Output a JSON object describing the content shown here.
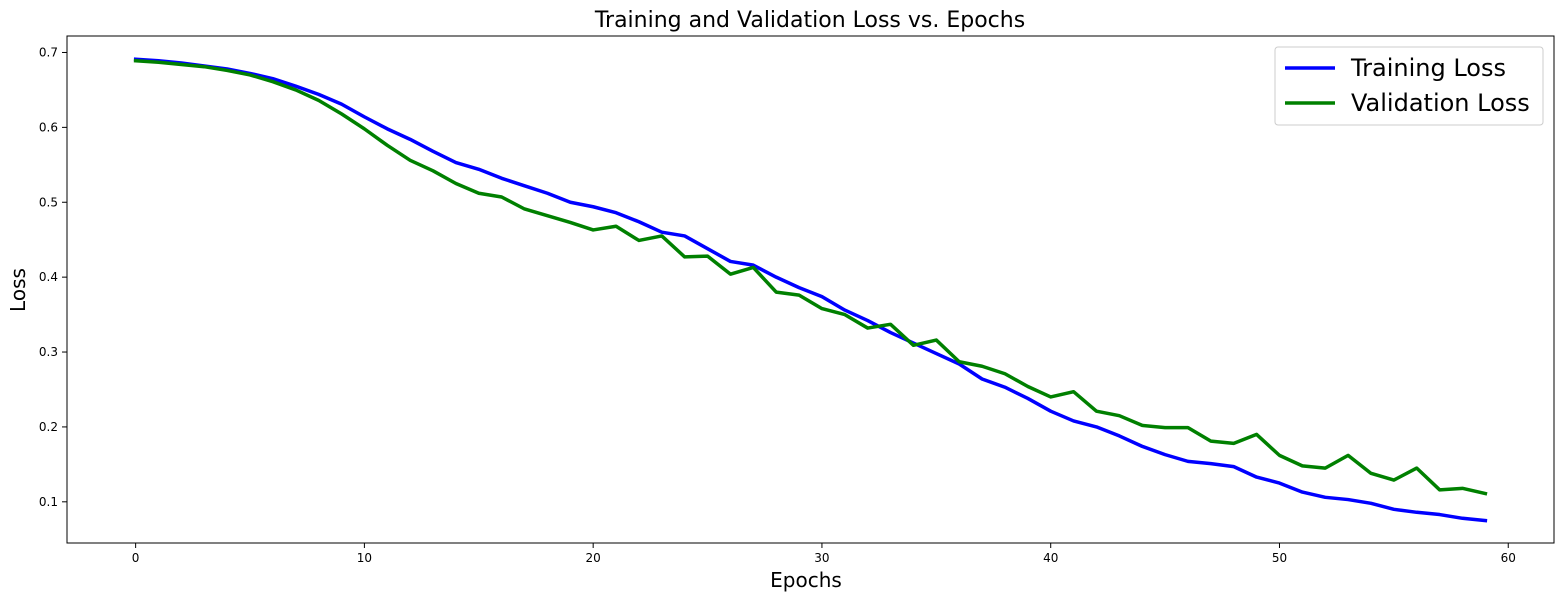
{
  "chart_data": {
    "type": "line",
    "title": "Training and Validation Loss vs. Epochs",
    "xlabel": "Epochs",
    "ylabel": "Loss",
    "xlim": [
      -3,
      62
    ],
    "ylim": [
      0.045,
      0.722
    ],
    "xticks": [
      0,
      10,
      20,
      30,
      40,
      50,
      60
    ],
    "yticks": [
      0.1,
      0.2,
      0.3,
      0.4,
      0.5,
      0.6,
      0.7
    ],
    "xtick_labels": [
      "0",
      "10",
      "20",
      "30",
      "40",
      "50",
      "60"
    ],
    "ytick_labels": [
      "0.1",
      "0.2",
      "0.3",
      "0.4",
      "0.5",
      "0.6",
      "0.7"
    ],
    "grid": false,
    "legend_position": "top-right",
    "x": [
      0,
      1,
      2,
      3,
      4,
      5,
      6,
      7,
      8,
      9,
      10,
      11,
      12,
      13,
      14,
      15,
      16,
      17,
      18,
      19,
      20,
      21,
      22,
      23,
      24,
      25,
      26,
      27,
      28,
      29,
      30,
      31,
      32,
      33,
      34,
      35,
      36,
      37,
      38,
      39,
      40,
      41,
      42,
      43,
      44,
      45,
      46,
      47,
      48,
      49,
      50,
      51,
      52,
      53,
      54,
      55,
      56,
      57,
      58,
      59
    ],
    "series": [
      {
        "name": "Training Loss",
        "color": "#0000ff",
        "values": [
          0.691,
          0.689,
          0.686,
          0.682,
          0.678,
          0.672,
          0.665,
          0.655,
          0.644,
          0.631,
          0.614,
          0.598,
          0.584,
          0.568,
          0.553,
          0.544,
          0.532,
          0.522,
          0.512,
          0.5,
          0.494,
          0.486,
          0.474,
          0.46,
          0.455,
          0.438,
          0.421,
          0.416,
          0.4,
          0.386,
          0.374,
          0.356,
          0.342,
          0.326,
          0.312,
          0.298,
          0.284,
          0.264,
          0.253,
          0.238,
          0.221,
          0.208,
          0.2,
          0.188,
          0.174,
          0.163,
          0.154,
          0.151,
          0.147,
          0.133,
          0.125,
          0.113,
          0.106,
          0.103,
          0.098,
          0.09,
          0.086,
          0.083,
          0.078,
          0.075
        ]
      },
      {
        "name": "Validation Loss",
        "color": "#008000",
        "values": [
          0.689,
          0.687,
          0.684,
          0.681,
          0.676,
          0.67,
          0.661,
          0.65,
          0.636,
          0.618,
          0.598,
          0.576,
          0.556,
          0.542,
          0.525,
          0.512,
          0.507,
          0.491,
          0.482,
          0.473,
          0.463,
          0.468,
          0.449,
          0.455,
          0.427,
          0.428,
          0.404,
          0.413,
          0.38,
          0.376,
          0.358,
          0.35,
          0.332,
          0.337,
          0.309,
          0.316,
          0.287,
          0.281,
          0.271,
          0.254,
          0.24,
          0.247,
          0.221,
          0.215,
          0.202,
          0.199,
          0.199,
          0.181,
          0.178,
          0.19,
          0.162,
          0.148,
          0.145,
          0.162,
          0.138,
          0.129,
          0.145,
          0.116,
          0.118,
          0.111
        ]
      }
    ]
  }
}
